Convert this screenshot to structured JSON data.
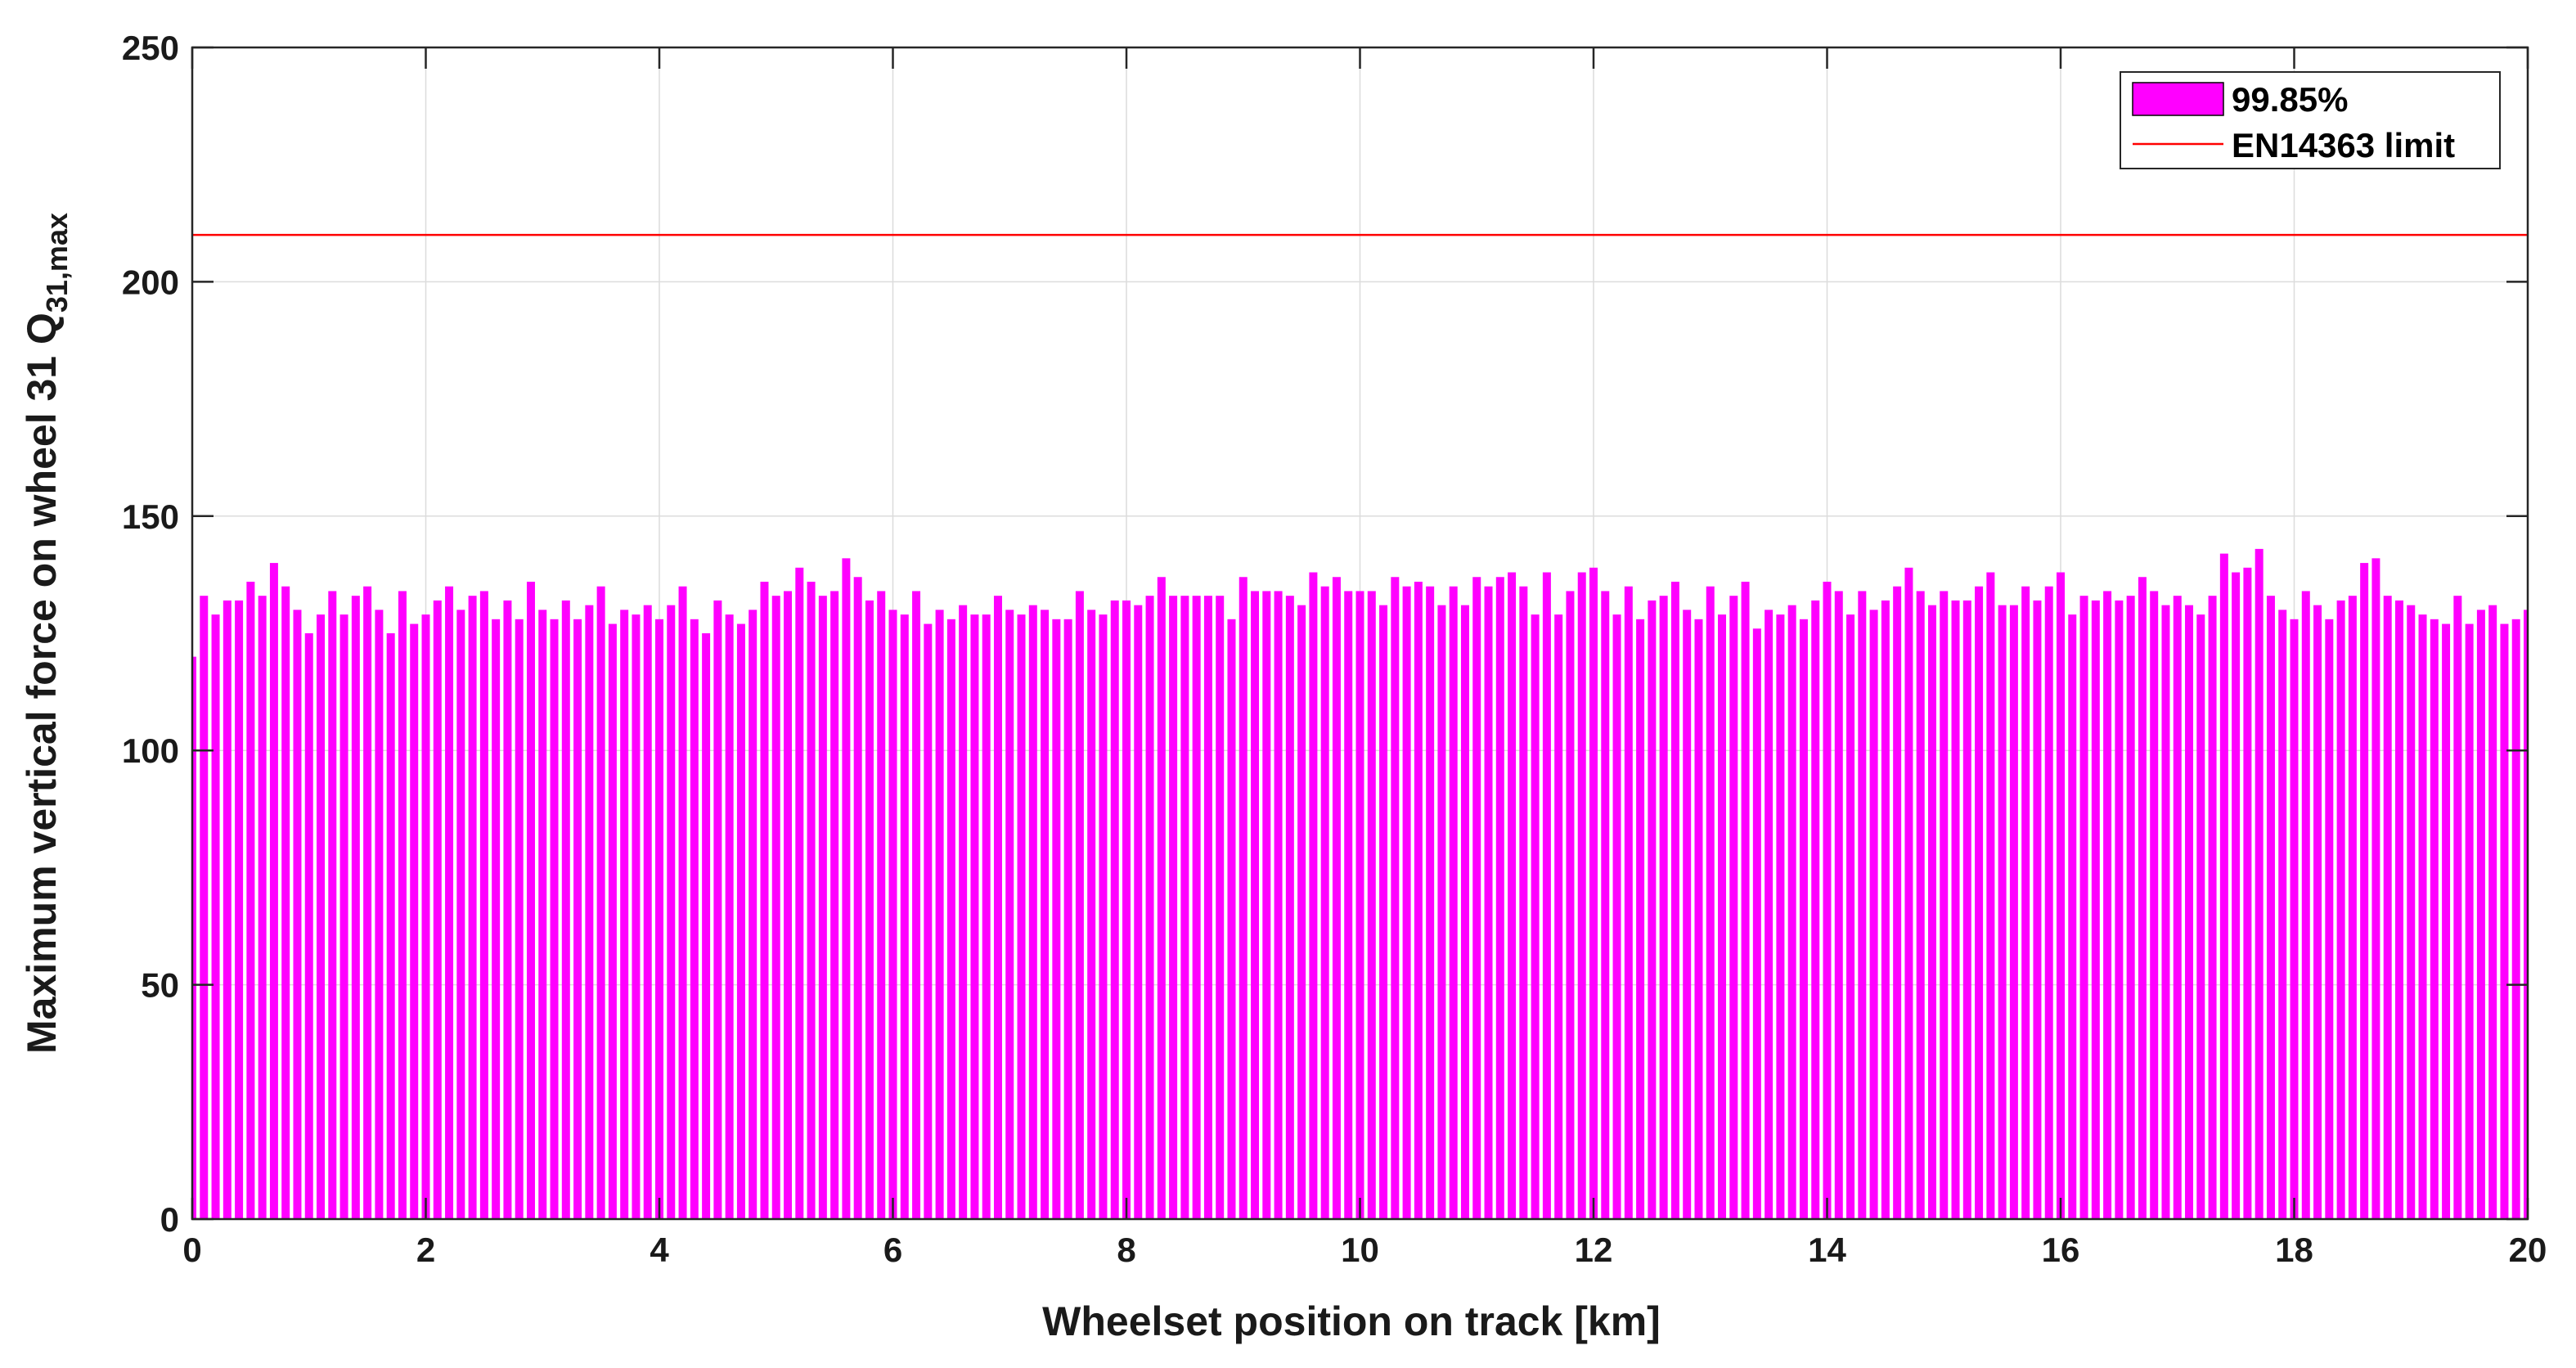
{
  "chart_data": {
    "type": "bar",
    "xlabel": "Wheelset position on track [km]",
    "ylabel": "Maximum vertical force on wheel 31 Q",
    "ylabel_subscript": "31,max",
    "xlim": [
      0,
      20
    ],
    "ylim": [
      0,
      250
    ],
    "xticks": [
      "0",
      "2",
      "4",
      "6",
      "8",
      "10",
      "12",
      "14",
      "16",
      "18",
      "20"
    ],
    "yticks": [
      "0",
      "50",
      "100",
      "150",
      "200",
      "250"
    ],
    "grid": true,
    "legend_position": "top-right",
    "bar_width_km": 0.07,
    "series": [
      {
        "name": "99.85%",
        "color": "#ff00ff",
        "x": [
          0.0,
          0.1,
          0.2,
          0.3,
          0.4,
          0.5,
          0.6,
          0.7,
          0.8,
          0.9,
          1.0,
          1.1,
          1.2,
          1.3,
          1.4,
          1.5,
          1.6,
          1.7,
          1.8,
          1.9,
          2.0,
          2.1,
          2.2,
          2.3,
          2.4,
          2.5,
          2.6,
          2.7,
          2.8,
          2.9,
          3.0,
          3.1,
          3.2,
          3.3,
          3.4,
          3.5,
          3.6,
          3.7,
          3.8,
          3.9,
          4.0,
          4.1,
          4.2,
          4.3,
          4.4,
          4.5,
          4.6,
          4.7,
          4.8,
          4.9,
          5.0,
          5.1,
          5.2,
          5.3,
          5.4,
          5.5,
          5.6,
          5.7,
          5.8,
          5.9,
          6.0,
          6.1,
          6.2,
          6.3,
          6.4,
          6.5,
          6.6,
          6.7,
          6.8,
          6.9,
          7.0,
          7.1,
          7.2,
          7.3,
          7.4,
          7.5,
          7.6,
          7.7,
          7.8,
          7.9,
          8.0,
          8.1,
          8.2,
          8.3,
          8.4,
          8.5,
          8.6,
          8.7,
          8.8,
          8.9,
          9.0,
          9.1,
          9.2,
          9.3,
          9.4,
          9.5,
          9.6,
          9.7,
          9.8,
          9.9,
          10.0,
          10.1,
          10.2,
          10.3,
          10.4,
          10.5,
          10.6,
          10.7,
          10.8,
          10.9,
          11.0,
          11.1,
          11.2,
          11.3,
          11.4,
          11.5,
          11.6,
          11.7,
          11.8,
          11.9,
          12.0,
          12.1,
          12.2,
          12.3,
          12.4,
          12.5,
          12.6,
          12.7,
          12.8,
          12.9,
          13.0,
          13.1,
          13.2,
          13.3,
          13.4,
          13.5,
          13.6,
          13.7,
          13.8,
          13.9,
          14.0,
          14.1,
          14.2,
          14.3,
          14.4,
          14.5,
          14.6,
          14.7,
          14.8,
          14.9,
          15.0,
          15.1,
          15.2,
          15.3,
          15.4,
          15.5,
          15.6,
          15.7,
          15.8,
          15.9,
          16.0,
          16.1,
          16.2,
          16.3,
          16.4,
          16.5,
          16.6,
          16.7,
          16.8,
          16.9,
          17.0,
          17.1,
          17.2,
          17.3,
          17.4,
          17.5,
          17.6,
          17.7,
          17.8,
          17.9,
          18.0,
          18.1,
          18.2,
          18.3,
          18.4,
          18.5,
          18.6,
          18.7,
          18.8,
          18.9,
          19.0,
          19.1,
          19.2,
          19.3,
          19.4,
          19.5,
          19.6,
          19.7,
          19.8,
          19.9,
          20.0
        ],
        "values": [
          120,
          133,
          129,
          132,
          132,
          136,
          133,
          140,
          135,
          130,
          125,
          129,
          134,
          129,
          133,
          135,
          130,
          125,
          134,
          127,
          129,
          132,
          135,
          130,
          133,
          134,
          128,
          132,
          128,
          136,
          130,
          128,
          132,
          128,
          131,
          135,
          127,
          130,
          129,
          131,
          128,
          131,
          135,
          128,
          125,
          132,
          129,
          127,
          130,
          136,
          133,
          134,
          139,
          136,
          133,
          134,
          141,
          137,
          132,
          134,
          130,
          129,
          134,
          127,
          130,
          128,
          131,
          129,
          129,
          133,
          130,
          129,
          131,
          130,
          128,
          128,
          134,
          130,
          129,
          132,
          132,
          131,
          133,
          137,
          133,
          133,
          133,
          133,
          133,
          128,
          137,
          134,
          134,
          134,
          133,
          131,
          138,
          135,
          137,
          134,
          134,
          134,
          131,
          137,
          135,
          136,
          135,
          131,
          135,
          131,
          137,
          135,
          137,
          138,
          135,
          129,
          138,
          129,
          134,
          138,
          139,
          134,
          129,
          135,
          128,
          132,
          133,
          136,
          130,
          128,
          135,
          129,
          133,
          136,
          126,
          130,
          129,
          131,
          128,
          132,
          136,
          134,
          129,
          134,
          130,
          132,
          135,
          139,
          134,
          131,
          134,
          132,
          132,
          135,
          138,
          131,
          131,
          135,
          132,
          135,
          138,
          129,
          133,
          132,
          134,
          132,
          133,
          137,
          134,
          131,
          133,
          131,
          129,
          133,
          142,
          138,
          139,
          143,
          133,
          130,
          128,
          134,
          131,
          128,
          132,
          133,
          140,
          141,
          133,
          132,
          131,
          129,
          128,
          127,
          133,
          127,
          130,
          131,
          127,
          128,
          130
        ]
      }
    ],
    "reference_lines": [
      {
        "name": "EN14363 limit",
        "y": 210,
        "color": "#ff0000"
      }
    ]
  }
}
